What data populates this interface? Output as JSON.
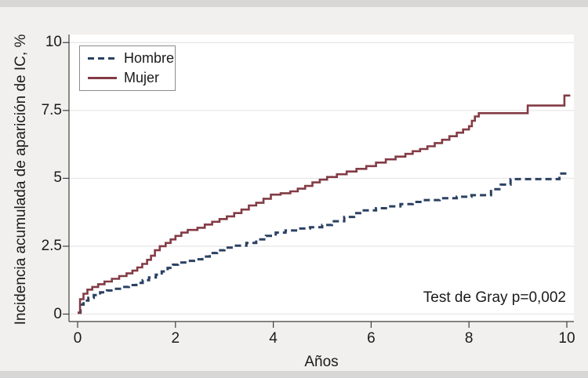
{
  "page": {
    "background_color": "#f1f0ee",
    "strip_color": "#d8d7d5",
    "plot_background": "#ffffff",
    "gridline_color": "#e8e8ea",
    "axis_color": "#3f3f3f"
  },
  "annotation": "Test de Gray p=0,002",
  "chart_data": {
    "type": "line",
    "subtype": "step-cumulative-incidence",
    "title": "",
    "xlabel": "Años",
    "ylabel": "Incidencia acumulada de aparición de IC, %",
    "xlim": [
      0,
      10
    ],
    "ylim": [
      0,
      10
    ],
    "x_ticks": [
      0,
      2,
      4,
      6,
      8,
      10
    ],
    "y_ticks": [
      0,
      2.5,
      5,
      7.5,
      10
    ],
    "x_tick_labels": [
      "0",
      "2",
      "4",
      "6",
      "8",
      "10"
    ],
    "y_tick_labels": [
      "0",
      "2.5",
      "5",
      "7.5",
      "10"
    ],
    "grid": "horizontal",
    "legend_position": "top-left",
    "annotation": "Test de Gray p=0,002",
    "series": [
      {
        "name": "Hombre",
        "color": "#2b4162",
        "style": "dashed",
        "points": [
          [
            0,
            0.05
          ],
          [
            0.06,
            0.35
          ],
          [
            0.12,
            0.5
          ],
          [
            0.22,
            0.6
          ],
          [
            0.33,
            0.7
          ],
          [
            0.46,
            0.8
          ],
          [
            0.6,
            0.87
          ],
          [
            0.75,
            0.93
          ],
          [
            0.9,
            1.0
          ],
          [
            1.05,
            1.07
          ],
          [
            1.2,
            1.15
          ],
          [
            1.33,
            1.25
          ],
          [
            1.46,
            1.35
          ],
          [
            1.6,
            1.45
          ],
          [
            1.72,
            1.57
          ],
          [
            1.84,
            1.7
          ],
          [
            1.95,
            1.82
          ],
          [
            2.05,
            1.9
          ],
          [
            2.2,
            1.96
          ],
          [
            2.38,
            2.02
          ],
          [
            2.55,
            2.12
          ],
          [
            2.7,
            2.25
          ],
          [
            2.85,
            2.35
          ],
          [
            3.0,
            2.45
          ],
          [
            3.2,
            2.52
          ],
          [
            3.45,
            2.62
          ],
          [
            3.65,
            2.75
          ],
          [
            3.85,
            2.88
          ],
          [
            4.05,
            3.0
          ],
          [
            4.25,
            3.08
          ],
          [
            4.5,
            3.15
          ],
          [
            4.75,
            3.2
          ],
          [
            5.0,
            3.28
          ],
          [
            5.2,
            3.42
          ],
          [
            5.45,
            3.58
          ],
          [
            5.65,
            3.72
          ],
          [
            5.85,
            3.82
          ],
          [
            6.1,
            3.9
          ],
          [
            6.35,
            3.97
          ],
          [
            6.6,
            4.05
          ],
          [
            6.85,
            4.13
          ],
          [
            7.1,
            4.2
          ],
          [
            7.4,
            4.27
          ],
          [
            7.75,
            4.32
          ],
          [
            8.05,
            4.38
          ],
          [
            8.45,
            4.6
          ],
          [
            8.65,
            4.77
          ],
          [
            8.85,
            4.97
          ],
          [
            9.85,
            5.18
          ],
          [
            10.07,
            5.18
          ]
        ]
      },
      {
        "name": "Mujer",
        "color": "#833b45",
        "style": "solid",
        "points": [
          [
            0,
            0.05
          ],
          [
            0.05,
            0.55
          ],
          [
            0.12,
            0.75
          ],
          [
            0.2,
            0.9
          ],
          [
            0.3,
            1.0
          ],
          [
            0.42,
            1.1
          ],
          [
            0.55,
            1.2
          ],
          [
            0.7,
            1.3
          ],
          [
            0.85,
            1.4
          ],
          [
            1.0,
            1.5
          ],
          [
            1.12,
            1.6
          ],
          [
            1.22,
            1.72
          ],
          [
            1.32,
            1.85
          ],
          [
            1.42,
            2.0
          ],
          [
            1.5,
            2.15
          ],
          [
            1.58,
            2.35
          ],
          [
            1.68,
            2.5
          ],
          [
            1.8,
            2.62
          ],
          [
            1.9,
            2.75
          ],
          [
            2.0,
            2.88
          ],
          [
            2.12,
            3.0
          ],
          [
            2.25,
            3.1
          ],
          [
            2.45,
            3.18
          ],
          [
            2.6,
            3.3
          ],
          [
            2.75,
            3.4
          ],
          [
            2.9,
            3.5
          ],
          [
            3.05,
            3.6
          ],
          [
            3.2,
            3.72
          ],
          [
            3.35,
            3.85
          ],
          [
            3.5,
            4.0
          ],
          [
            3.65,
            4.1
          ],
          [
            3.8,
            4.25
          ],
          [
            3.95,
            4.4
          ],
          [
            4.15,
            4.45
          ],
          [
            4.35,
            4.52
          ],
          [
            4.5,
            4.62
          ],
          [
            4.65,
            4.72
          ],
          [
            4.8,
            4.85
          ],
          [
            4.95,
            4.95
          ],
          [
            5.1,
            5.05
          ],
          [
            5.3,
            5.15
          ],
          [
            5.5,
            5.25
          ],
          [
            5.7,
            5.35
          ],
          [
            5.9,
            5.45
          ],
          [
            6.1,
            5.58
          ],
          [
            6.3,
            5.7
          ],
          [
            6.5,
            5.8
          ],
          [
            6.7,
            5.9
          ],
          [
            6.85,
            6.0
          ],
          [
            7.0,
            6.08
          ],
          [
            7.15,
            6.18
          ],
          [
            7.3,
            6.3
          ],
          [
            7.45,
            6.42
          ],
          [
            7.6,
            6.55
          ],
          [
            7.75,
            6.68
          ],
          [
            7.88,
            6.8
          ],
          [
            8.0,
            6.92
          ],
          [
            8.06,
            7.12
          ],
          [
            8.12,
            7.28
          ],
          [
            8.2,
            7.4
          ],
          [
            9.2,
            7.68
          ],
          [
            9.95,
            8.05
          ],
          [
            10.07,
            8.05
          ]
        ]
      }
    ]
  }
}
